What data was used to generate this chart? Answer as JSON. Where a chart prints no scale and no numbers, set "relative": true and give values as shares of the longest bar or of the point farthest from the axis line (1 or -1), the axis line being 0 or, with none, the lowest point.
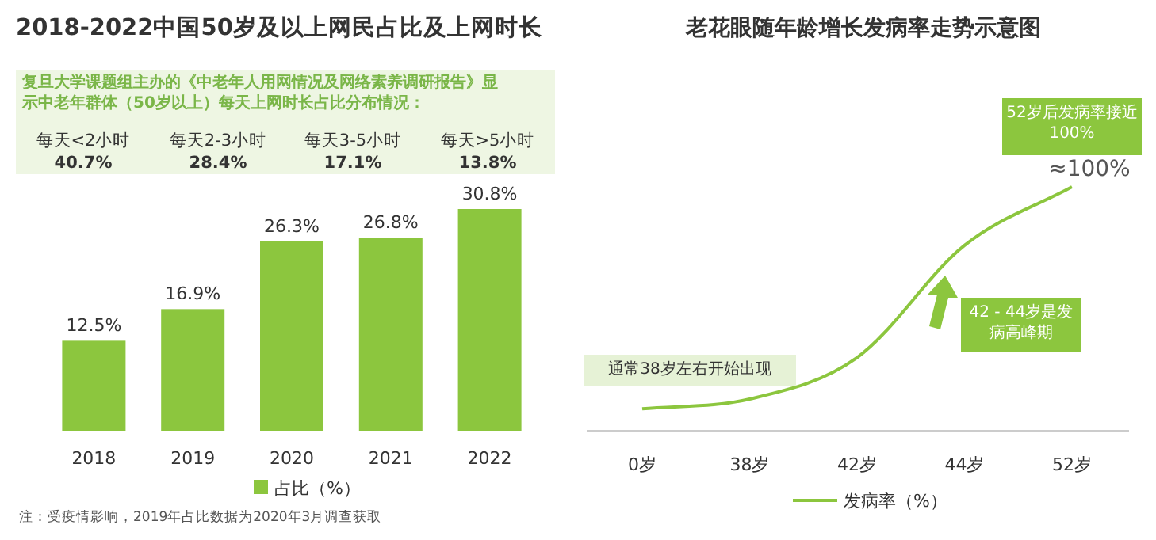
{
  "chart_data": [
    {
      "type": "bar",
      "title": "2018-2022中国50岁及以上网民占比及上网时长",
      "categories": [
        "2018",
        "2019",
        "2020",
        "2021",
        "2022"
      ],
      "series": [
        {
          "name": "占比（%）",
          "color": "#8cc63e",
          "values": [
            12.5,
            16.9,
            26.3,
            26.8,
            30.8
          ],
          "value_labels": [
            "12.5%",
            "16.9%",
            "26.3%",
            "26.8%",
            "30.8%"
          ]
        }
      ],
      "legend": "bottom",
      "annotations": [
        "复旦大学课题组主办的《中老年人用网情况及网络素养调研报告》显示中老年群体（50岁以上）每天上网时长占比分布情况：",
        "每天<2小时",
        "40.7%",
        "每天2-3小时",
        "28.4%",
        "每天3-5小时",
        "17.1%",
        "每天>5小时",
        "13.8%",
        "注：受疫情影响，2019年占比数据为2020年3月调查获取"
      ]
    },
    {
      "type": "line",
      "title": "老花眼随年龄增长发病率走势示意图",
      "categories": [
        "0岁",
        "38岁",
        "42岁",
        "44岁",
        "52岁"
      ],
      "relative": true,
      "series": [
        {
          "name": "发病率（%）",
          "color": "#8cc63e",
          "values": [
            0.09,
            0.13,
            0.3,
            0.76,
            1
          ]
        }
      ],
      "legend": "bottom",
      "annotations": [
        "52岁后发病率接近100%",
        "≈100%",
        "42 - 44岁是发病高峰期",
        "通常38岁左右开始出现"
      ]
    }
  ]
}
